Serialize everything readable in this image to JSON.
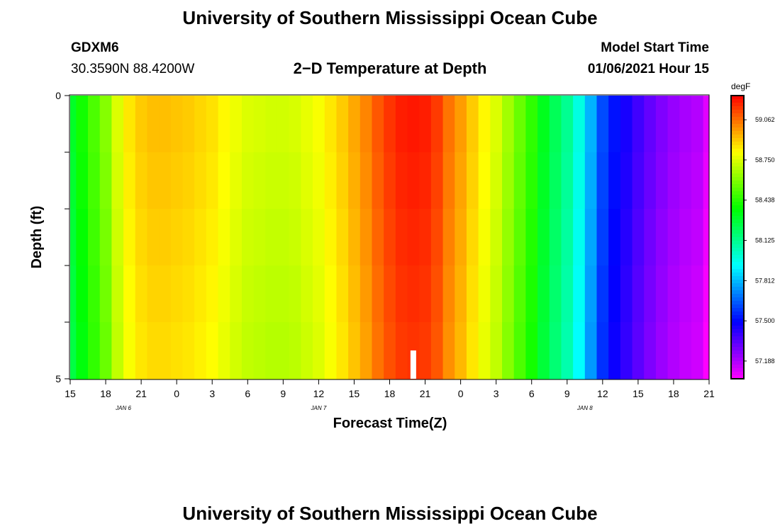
{
  "page": {
    "title_top": "University of Southern Mississippi Ocean Cube",
    "title_bottom": "University of Southern Mississippi Ocean Cube",
    "station": "GDXM6",
    "location": "30.3590N 88.4200W",
    "model_start_label": "Model Start Time",
    "model_start_value": "01/06/2021 Hour 15"
  },
  "chart_data": {
    "type": "heatmap",
    "title": "2−D Temperature at Depth",
    "xlabel": "Forecast Time(Z)",
    "ylabel": "Depth (ft)",
    "y_ticks": [
      "0",
      "5"
    ],
    "ylim": [
      0,
      5
    ],
    "x_tick_labels": [
      "15",
      "18",
      "21",
      "0",
      "3",
      "6",
      "9",
      "12",
      "15",
      "18",
      "21",
      "0",
      "3",
      "6",
      "9",
      "12",
      "15",
      "18",
      "21"
    ],
    "date_labels": [
      {
        "text": "JAN 6",
        "hour": 4.5
      },
      {
        "text": "JAN 7",
        "hour": 21
      },
      {
        "text": "JAN 8",
        "hour": 43.5
      }
    ],
    "colorbar": {
      "unit": "degF",
      "ticks": [
        "59.062",
        "58.750",
        "58.438",
        "58.125",
        "57.812",
        "57.500",
        "57.188"
      ],
      "range": [
        57.05,
        59.25
      ]
    },
    "current_time_marker_hour": 29,
    "series": [
      {
        "hours": [
          0,
          1,
          2,
          3,
          4,
          5,
          6,
          7,
          8,
          9,
          10,
          11,
          12,
          13,
          14,
          15,
          16,
          17,
          18,
          19,
          20,
          21,
          22,
          23,
          24,
          25,
          26,
          27,
          28,
          29,
          30,
          31,
          32,
          33,
          34,
          35,
          36,
          37,
          38,
          39,
          40,
          41,
          42,
          43,
          44,
          45,
          46,
          47,
          48,
          49,
          50,
          51,
          52,
          53,
          54
        ],
        "values": [
          58.3,
          58.4,
          58.5,
          58.6,
          58.75,
          58.85,
          58.9,
          58.92,
          58.92,
          58.91,
          58.9,
          58.88,
          58.86,
          58.82,
          58.78,
          58.75,
          58.74,
          58.73,
          58.73,
          58.74,
          58.77,
          58.8,
          58.85,
          58.9,
          58.96,
          59.02,
          59.1,
          59.16,
          59.2,
          59.21,
          59.2,
          59.15,
          59.05,
          58.98,
          58.9,
          58.82,
          58.75,
          58.65,
          58.55,
          58.45,
          58.32,
          58.22,
          58.12,
          57.98,
          57.8,
          57.62,
          57.52,
          57.45,
          57.38,
          57.32,
          57.27,
          57.23,
          57.2,
          57.18,
          57.1
        ]
      }
    ]
  }
}
